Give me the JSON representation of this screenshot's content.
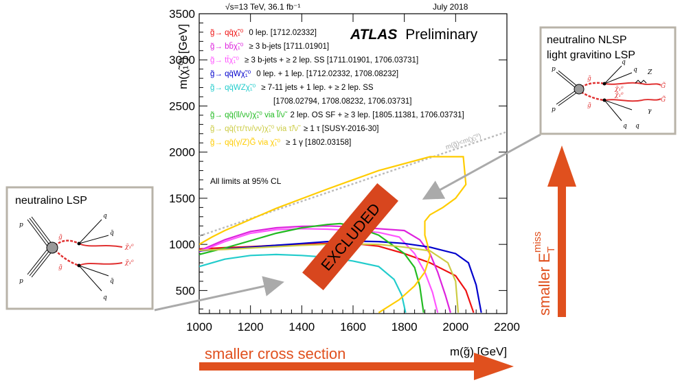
{
  "chart_data": {
    "type": "line",
    "header_left": "√s=13 TeV, 36.1 fb⁻¹",
    "header_right": "July 2018",
    "experiment": "ATLAS",
    "experiment_suffix": "Preliminary",
    "xlabel": "m(g̃) [GeV]",
    "ylabel": "m(χ̃₁⁰) [GeV]",
    "xlim": [
      1000,
      2200
    ],
    "ylim": [
      250,
      3500
    ],
    "x_ticks": [
      1000,
      1200,
      1400,
      1600,
      1800,
      2000,
      2200
    ],
    "y_ticks": [
      500,
      1000,
      1500,
      2000,
      2500,
      3000,
      3500
    ],
    "cl_note": "All limits at 95% CL",
    "diagonal_label": "m(g̃)<m(χ̃₁⁰)",
    "excluded_label": "EXCLUDED",
    "series": [
      {
        "process": "g̃→ qq̄χ̃₁⁰",
        "desc": "0 lep. [1712.02332]",
        "color": "#ee1111",
        "points": [
          [
            1000,
            950
          ],
          [
            1100,
            965
          ],
          [
            1200,
            975
          ],
          [
            1300,
            990
          ],
          [
            1400,
            1000
          ],
          [
            1500,
            1010
          ],
          [
            1600,
            1010
          ],
          [
            1700,
            980
          ],
          [
            1800,
            900
          ],
          [
            1900,
            800
          ],
          [
            2000,
            660
          ],
          [
            2040,
            500
          ],
          [
            2070,
            260
          ]
        ]
      },
      {
        "process": "g̃→ bb̄χ̃₁⁰",
        "desc": "≥ 3 b-jets [1711.01901]",
        "color": "#dd22dd",
        "points": [
          [
            1000,
            930
          ],
          [
            1100,
            1050
          ],
          [
            1200,
            1140
          ],
          [
            1300,
            1180
          ],
          [
            1400,
            1195
          ],
          [
            1500,
            1200
          ],
          [
            1600,
            1190
          ],
          [
            1700,
            1170
          ],
          [
            1800,
            1150
          ],
          [
            1860,
            1050
          ],
          [
            1900,
            900
          ],
          [
            1930,
            700
          ],
          [
            1960,
            450
          ],
          [
            1980,
            260
          ]
        ]
      },
      {
        "process": "g̃→ tt̄χ̃₁⁰",
        "desc": "≥ 3 b-jets + ≥ 2 lep. SS [1711.01901, 1706.03731]",
        "color": "#ff55ff",
        "points": [
          [
            1000,
            920
          ],
          [
            1100,
            1030
          ],
          [
            1200,
            1120
          ],
          [
            1300,
            1160
          ],
          [
            1400,
            1170
          ],
          [
            1500,
            1165
          ],
          [
            1600,
            1150
          ],
          [
            1700,
            1130
          ],
          [
            1780,
            1080
          ],
          [
            1840,
            900
          ],
          [
            1880,
            700
          ],
          [
            1910,
            480
          ],
          [
            1930,
            260
          ]
        ]
      },
      {
        "process": "g̃→ qq̄Wχ̃₁⁰",
        "desc": "0 lep. + 1 lep. [1712.02332, 1708.08232]",
        "color": "#0000cc",
        "points": [
          [
            1000,
            930
          ],
          [
            1100,
            950
          ],
          [
            1200,
            970
          ],
          [
            1300,
            990
          ],
          [
            1400,
            1010
          ],
          [
            1500,
            1030
          ],
          [
            1600,
            1035
          ],
          [
            1700,
            1030
          ],
          [
            1800,
            1010
          ],
          [
            1900,
            970
          ],
          [
            2000,
            900
          ],
          [
            2050,
            800
          ],
          [
            2080,
            560
          ],
          [
            2100,
            260
          ]
        ]
      },
      {
        "process": "g̃→ qq̄WZχ̃₁⁰",
        "desc": "≥ 7-11 jets + 1 lep. + ≥ 2 lep. SS",
        "desc2": "[1708.02794, 1708.08232, 1706.03731]",
        "color": "#22cccc",
        "points": [
          [
            1000,
            760
          ],
          [
            1100,
            840
          ],
          [
            1200,
            880
          ],
          [
            1300,
            890
          ],
          [
            1400,
            880
          ],
          [
            1500,
            860
          ],
          [
            1600,
            820
          ],
          [
            1700,
            760
          ],
          [
            1760,
            620
          ],
          [
            1790,
            450
          ],
          [
            1805,
            260
          ]
        ]
      },
      {
        "process": "g̃→ qq̄(ll/νν)χ̃₁⁰ via l̃/ν̃",
        "desc": "2 lep. OS SF + ≥ 3 lep. [1805.11381, 1706.03731]",
        "color": "#22bb22",
        "points": [
          [
            1000,
            890
          ],
          [
            1100,
            960
          ],
          [
            1200,
            1040
          ],
          [
            1300,
            1120
          ],
          [
            1400,
            1180
          ],
          [
            1500,
            1215
          ],
          [
            1550,
            1225
          ],
          [
            1600,
            1200
          ],
          [
            1650,
            1150
          ],
          [
            1700,
            1100
          ],
          [
            1750,
            1000
          ],
          [
            1800,
            900
          ],
          [
            1840,
            750
          ],
          [
            1860,
            550
          ],
          [
            1875,
            260
          ]
        ]
      },
      {
        "process": "g̃→ qq̄(ττ/τν/νν)χ̃₁⁰ via τ̃/ν̃",
        "desc": "≥ 1 τ [SUSY-2016-30]",
        "color": "#cccc44",
        "points": [
          [
            1000,
            935
          ],
          [
            1100,
            945
          ],
          [
            1200,
            960
          ],
          [
            1300,
            975
          ],
          [
            1400,
            990
          ],
          [
            1500,
            1000
          ],
          [
            1600,
            1005
          ],
          [
            1700,
            1000
          ],
          [
            1800,
            970
          ],
          [
            1900,
            930
          ],
          [
            1970,
            800
          ],
          [
            2000,
            600
          ],
          [
            2010,
            260
          ]
        ]
      },
      {
        "process": "g̃→ qq̄(γ/Z)G̃ via χ̃₁⁰",
        "desc": "≥ 1 γ [1802.03158]",
        "color": "#ffcc00",
        "points": [
          [
            1000,
            1000
          ],
          [
            1050,
            1080
          ],
          [
            1100,
            1150
          ],
          [
            1300,
            1390
          ],
          [
            1500,
            1600
          ],
          [
            1700,
            1800
          ],
          [
            1900,
            1950
          ],
          [
            2030,
            1950
          ],
          [
            2040,
            1650
          ],
          [
            2000,
            1500
          ],
          [
            1950,
            1400
          ],
          [
            1900,
            1320
          ],
          [
            1880,
            1250
          ],
          [
            1880,
            1100
          ],
          [
            1890,
            1000
          ],
          [
            1900,
            880
          ],
          [
            1880,
            700
          ],
          [
            1840,
            550
          ],
          [
            1780,
            400
          ],
          [
            1700,
            260
          ]
        ]
      }
    ]
  },
  "insets": {
    "left_title": "neutralino LSP",
    "right_title_1": "neutralino NLSP",
    "right_title_2": "light gravitino LSP"
  },
  "annotations": {
    "bottom_arrow": "smaller cross section",
    "right_arrow_main": "smaller E",
    "right_arrow_sup": "miss",
    "right_arrow_sub": "T"
  },
  "colors": {
    "arrow": "#e0501e",
    "excluded_box": "#d8461e",
    "inset_border": "#b8b3a8",
    "pointer": "#aaaaaa"
  }
}
